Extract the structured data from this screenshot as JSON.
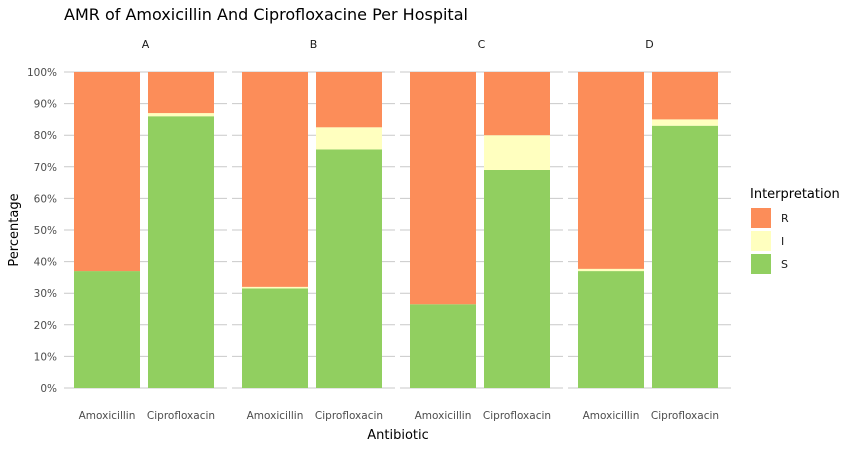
{
  "chart_data": {
    "type": "bar",
    "stacked": true,
    "title": "AMR of Amoxicillin And Ciprofloxacine Per Hospital",
    "xlabel": "Antibiotic",
    "ylabel": "Percentage",
    "ylim": [
      0,
      100
    ],
    "y_ticks": [
      "0%",
      "10%",
      "20%",
      "30%",
      "40%",
      "50%",
      "60%",
      "70%",
      "80%",
      "90%",
      "100%"
    ],
    "facets": [
      "A",
      "B",
      "C",
      "D"
    ],
    "categories": [
      "Amoxicillin",
      "Ciprofloxacin"
    ],
    "legend": {
      "title": "Interpretation",
      "placement": "right",
      "items": [
        {
          "key": "R",
          "label": "R",
          "color": "#FC8D59"
        },
        {
          "key": "I",
          "label": "I",
          "color": "#FFFFBF"
        },
        {
          "key": "S",
          "label": "S",
          "color": "#91CF60"
        }
      ]
    },
    "stack_order": [
      "S",
      "I",
      "R"
    ],
    "data": [
      {
        "facet": "A",
        "antibiotic": "Amoxicillin",
        "S": 37,
        "I": 0,
        "R": 63
      },
      {
        "facet": "A",
        "antibiotic": "Ciprofloxacin",
        "S": 86,
        "I": 1,
        "R": 13
      },
      {
        "facet": "B",
        "antibiotic": "Amoxicillin",
        "S": 31.5,
        "I": 0.5,
        "R": 68
      },
      {
        "facet": "B",
        "antibiotic": "Ciprofloxacin",
        "S": 75.5,
        "I": 7,
        "R": 17.5
      },
      {
        "facet": "C",
        "antibiotic": "Amoxicillin",
        "S": 26.5,
        "I": 0,
        "R": 73.5
      },
      {
        "facet": "C",
        "antibiotic": "Ciprofloxacin",
        "S": 69,
        "I": 11,
        "R": 20
      },
      {
        "facet": "D",
        "antibiotic": "Amoxicillin",
        "S": 37,
        "I": 0.7,
        "R": 62.3
      },
      {
        "facet": "D",
        "antibiotic": "Ciprofloxacin",
        "S": 83,
        "I": 2,
        "R": 15
      }
    ],
    "grid": true
  }
}
